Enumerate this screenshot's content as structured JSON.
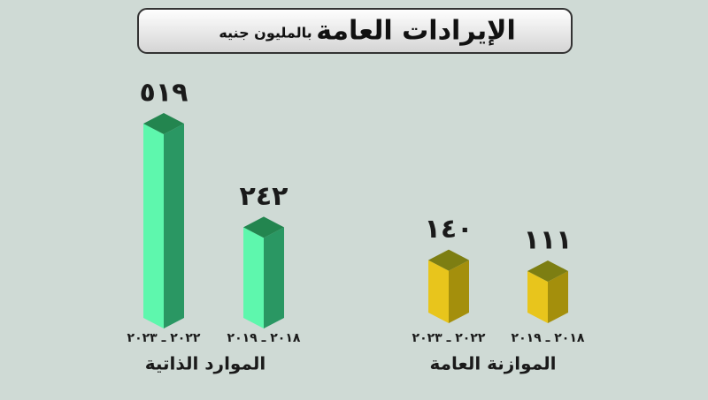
{
  "chart_data": {
    "type": "bar3d",
    "title": "الإيرادات العامة",
    "subtitle": "بالمليون جنيه",
    "groups": [
      {
        "name": "الموارد الذاتية",
        "categories": [
          "٢٠٢٢ ـ ٢٠٢٣",
          "٢٠١٨ ـ ٢٠١٩"
        ],
        "values": [
          519,
          242
        ],
        "value_labels": [
          "٥١٩",
          "٢٤٢"
        ],
        "color": "#5ef7ad",
        "side_color": "#2a9763",
        "top_color": "#23854f"
      },
      {
        "name": "الموازنة العامة",
        "categories": [
          "٢٠٢٢ ـ ٢٠٢٣",
          "٢٠١٨ ـ ٢٠١٩"
        ],
        "values": [
          140,
          111
        ],
        "value_labels": [
          "١٤٠",
          "١١١"
        ],
        "color": "#e8c51c",
        "side_color": "#a48f0c",
        "top_color": "#7d7e12"
      }
    ]
  }
}
